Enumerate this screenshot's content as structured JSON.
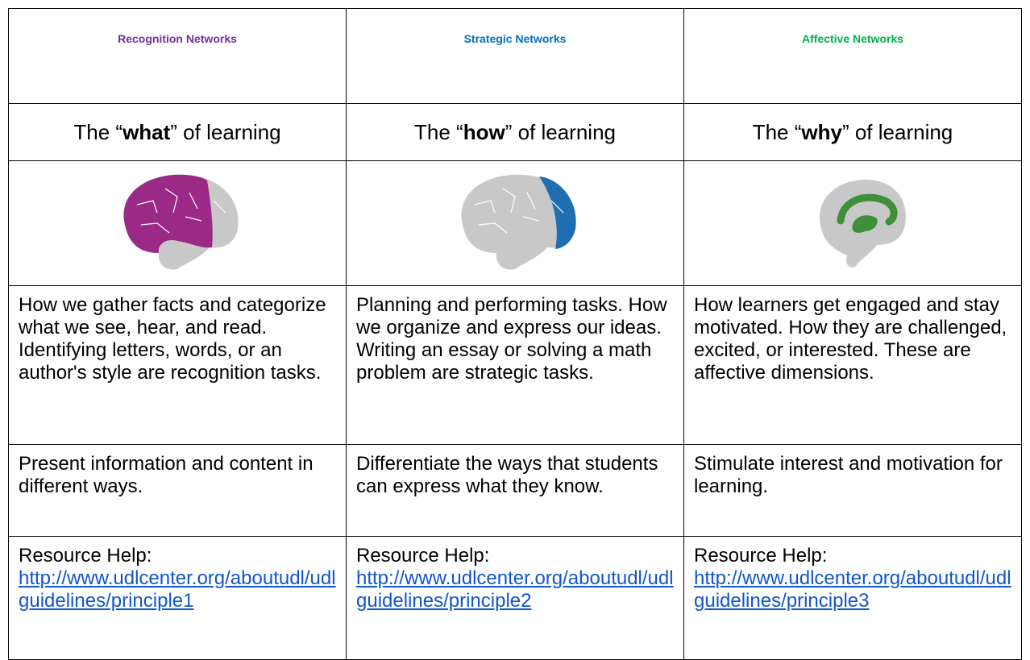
{
  "table": {
    "headers": [
      "Recognition Networks",
      "Strategic Networks",
      "Affective Networks"
    ],
    "header_colors": [
      "#7030a0",
      "#0070c0",
      "#00b050"
    ],
    "brain_colors": [
      "#9b2a86",
      "#1f6fb0",
      "#3f8f3a"
    ],
    "taglines": [
      {
        "before": "The “",
        "bold": "what",
        "after": "” of learning"
      },
      {
        "before": "The “",
        "bold": "how",
        "after": "” of learning"
      },
      {
        "before": "The “",
        "bold": "why",
        "after": "” of learning"
      }
    ],
    "descriptions": [
      "How we gather facts and categorize what we see, hear, and read. Identifying letters, words, or an author's style are recognition tasks.",
      "Planning and performing tasks. How we organize and express our ideas. Writing an essay or solving a math problem are strategic tasks.",
      "How learners get engaged and stay motivated. How they are challenged, excited, or interested. These are affective dimensions."
    ],
    "actions": [
      "Present information and content in different ways.",
      "Differentiate the ways that students can express what they know.",
      "Stimulate interest and motivation for learning."
    ],
    "resources": [
      {
        "label": "Resource Help:",
        "url": "http://www.udlcenter.org/aboutudl/udlguidelines/principle1"
      },
      {
        "label": "Resource Help:",
        "url": "http://www.udlcenter.org/aboutudl/udlguidelines/principle2"
      },
      {
        "label": "Resource Help:",
        "url": "http://www.udlcenter.org/aboutudl/udlguidelines/principle3"
      }
    ]
  }
}
